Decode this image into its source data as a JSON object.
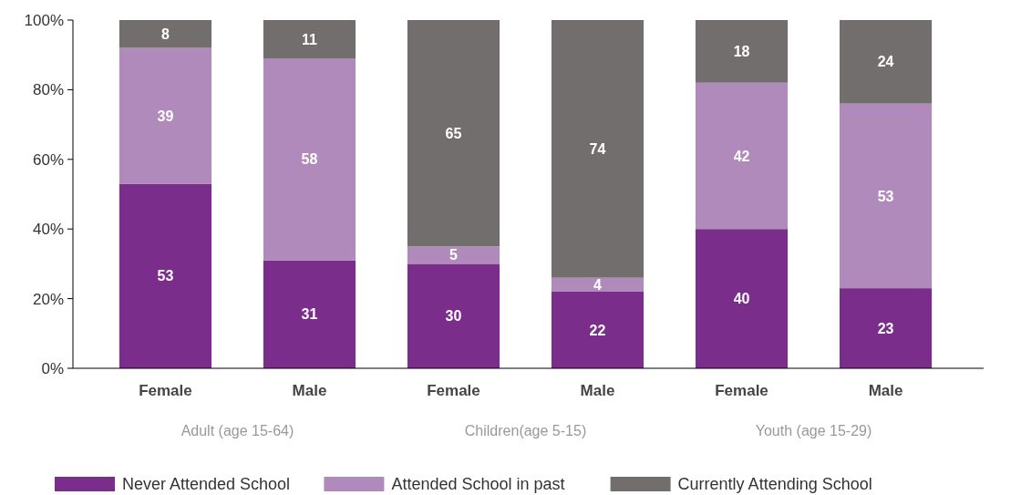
{
  "chart_data": {
    "type": "bar",
    "stacked": true,
    "categories": [
      "Female",
      "Male",
      "Female",
      "Male",
      "Female",
      "Male"
    ],
    "series": [
      {
        "name": "Never Attended School",
        "color": "#7b2d8b",
        "values": [
          53,
          31,
          30,
          22,
          40,
          23
        ]
      },
      {
        "name": "Attended School in past",
        "color": "#b08aba",
        "values": [
          39,
          58,
          5,
          4,
          42,
          53
        ]
      },
      {
        "name": "Currently Attending School",
        "color": "#736e6e",
        "values": [
          8,
          11,
          65,
          74,
          18,
          24
        ]
      }
    ],
    "ylim": [
      0,
      100
    ],
    "yticks": [
      {
        "value": 0,
        "label": "0%"
      },
      {
        "value": 20,
        "label": "20%"
      },
      {
        "value": 40,
        "label": "40%"
      },
      {
        "value": 60,
        "label": "60%"
      },
      {
        "value": 80,
        "label": "80%"
      },
      {
        "value": 100,
        "label": "100%"
      }
    ],
    "annotations": [
      "Adult (age 15-64)",
      "Children(age 5-15)",
      "Youth (age 15-29)"
    ],
    "data_labels": true,
    "legend": "bottom",
    "grid": false
  }
}
